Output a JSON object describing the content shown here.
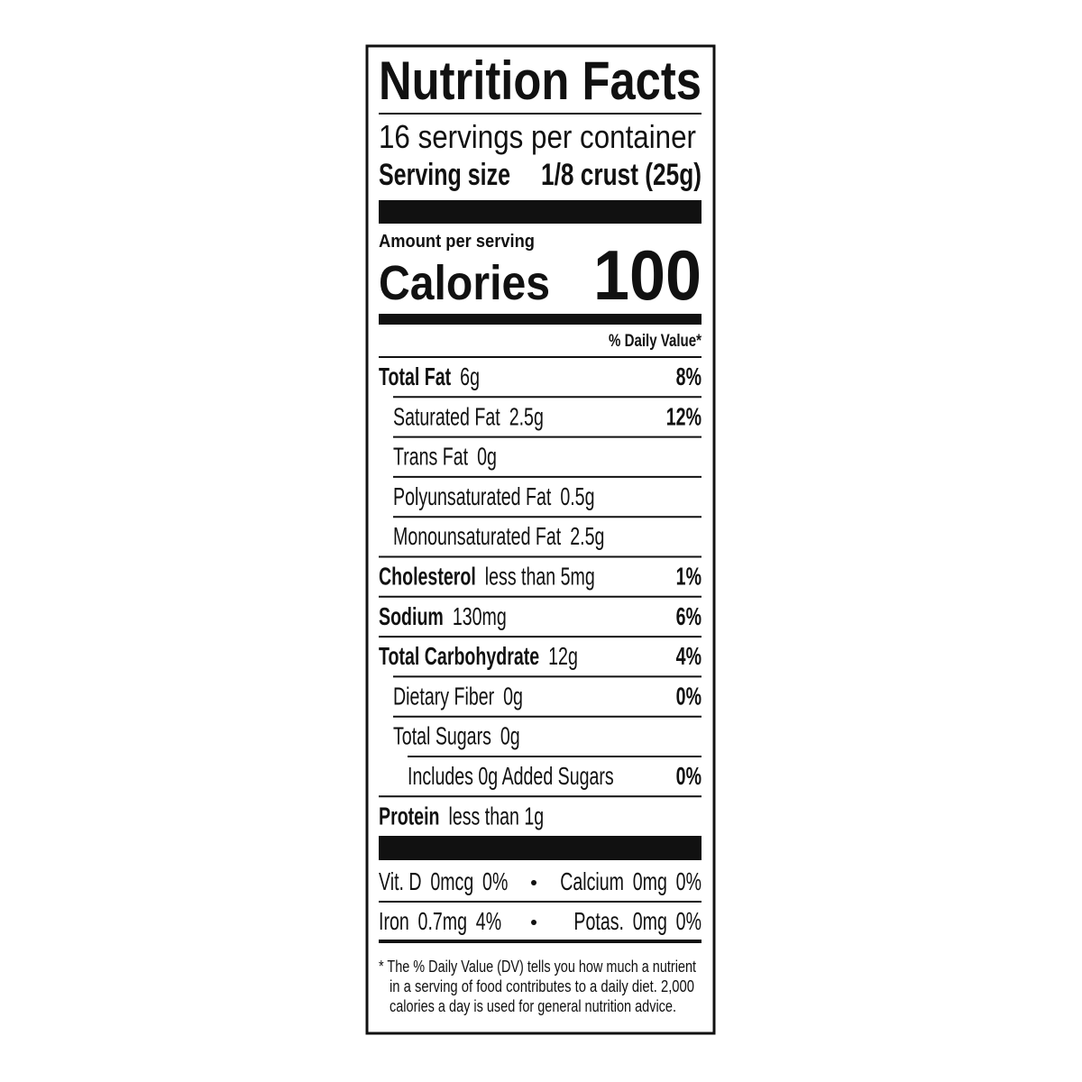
{
  "title": "Nutrition Facts",
  "servings": "16 servings per container",
  "serving_size": {
    "label": "Serving size",
    "value": "1/8 crust (25g)"
  },
  "amount_per_serving": "Amount per serving",
  "calories": {
    "label": "Calories",
    "value": 100
  },
  "daily_value_header": "% Daily Value*",
  "nutrients": [
    {
      "name": "Total Fat",
      "amount": "6g",
      "dv": "8%"
    },
    {
      "name": "Saturated Fat",
      "amount": "2.5g",
      "dv": "12%"
    },
    {
      "name": "Trans Fat",
      "amount": "0g"
    },
    {
      "name": "Polyunsaturated Fat",
      "amount": "0.5g"
    },
    {
      "name": "Monounsaturated Fat",
      "amount": "2.5g"
    },
    {
      "name": "Cholesterol",
      "amount": "less than 5mg",
      "dv": "1%"
    },
    {
      "name": "Sodium",
      "amount": "130mg",
      "dv": "6%"
    },
    {
      "name": "Total Carbohydrate",
      "amount": "12g",
      "dv": "4%"
    },
    {
      "name": "Dietary Fiber",
      "amount": "0g",
      "dv": "0%"
    },
    {
      "name": "Total Sugars",
      "amount": "0g"
    },
    {
      "name": "Includes 0g Added Sugars",
      "dv": "0%"
    },
    {
      "name": "Protein",
      "amount": "less than 1g"
    }
  ],
  "vitamins": [
    [
      {
        "name": "Vit. D",
        "amount": "0mcg",
        "dv": "0%"
      },
      {
        "name": "Calcium",
        "amount": "0mg",
        "dv": "0%"
      }
    ],
    [
      {
        "name": "Iron",
        "amount": "0.7mg",
        "dv": "4%"
      },
      {
        "name": "Potas.",
        "amount": "0mg",
        "dv": "0%"
      }
    ]
  ],
  "footnote": [
    "* The % Daily Value (DV) tells you how much a nutrient",
    "in a serving of food contributes to a daily diet. 2,000",
    "calories a day is used for general nutrition advice."
  ]
}
